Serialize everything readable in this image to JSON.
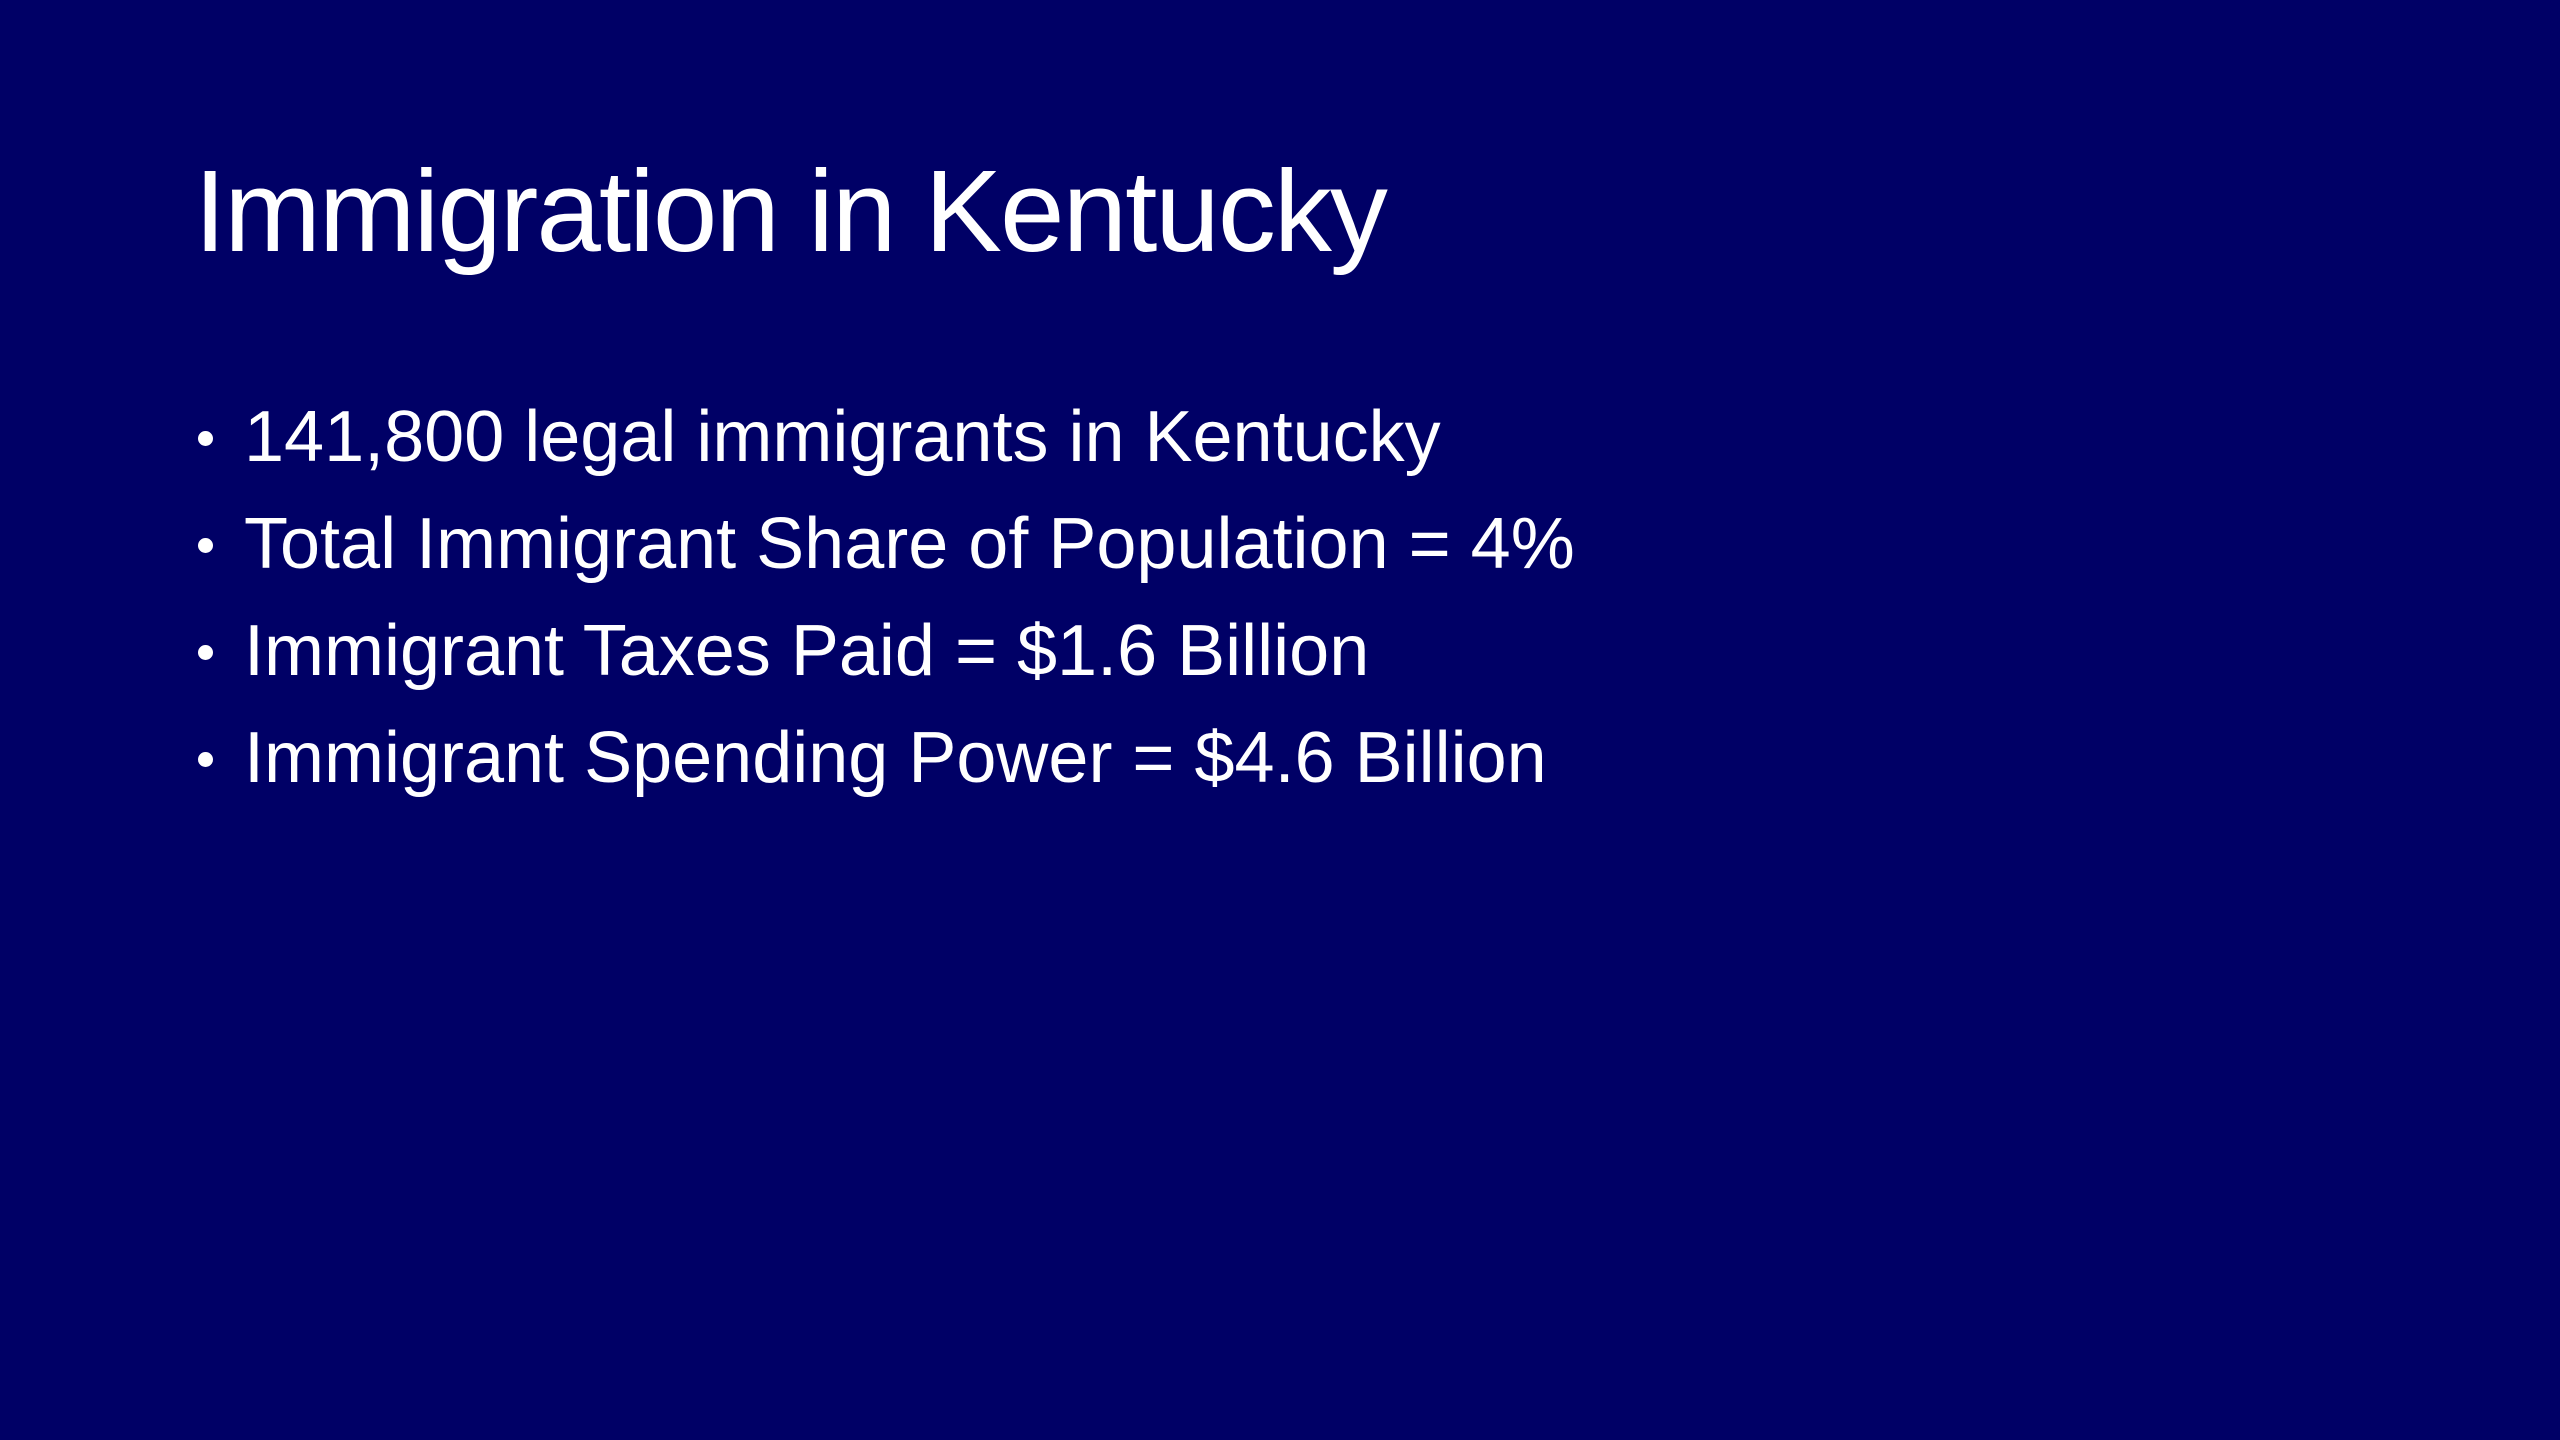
{
  "slide": {
    "title": "Immigration in Kentucky",
    "bullets": [
      "141,800 legal immigrants in Kentucky",
      "Total Immigrant Share of Population = 4%",
      "Immigrant Taxes Paid = $1.6 Billion",
      "Immigrant Spending Power = $4.6 Billion"
    ]
  },
  "colors": {
    "background": "#000066",
    "text": "#ffffff"
  }
}
